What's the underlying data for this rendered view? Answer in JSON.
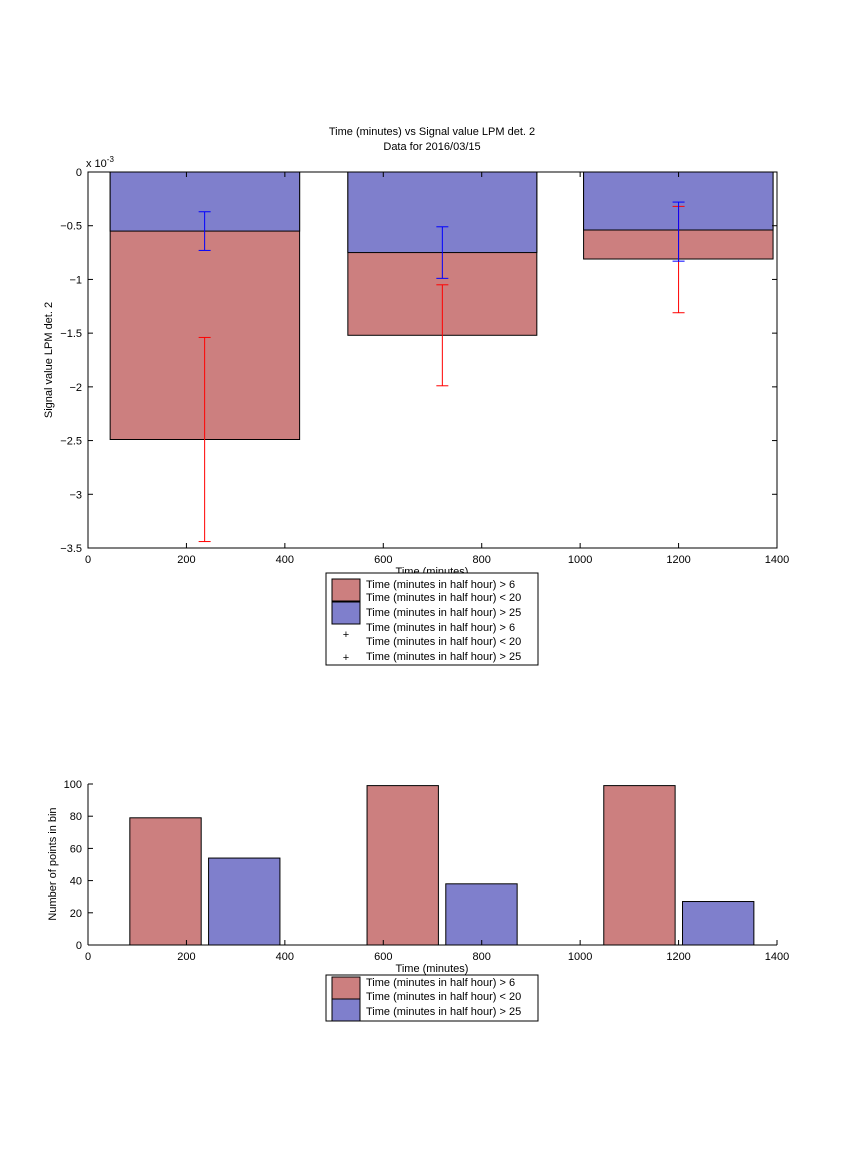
{
  "colors": {
    "red_fill": "#cc7f7f",
    "blue_fill": "#7f7fcc",
    "red_err": "#ff0000",
    "blue_err": "#0000ff"
  },
  "chart_data": [
    {
      "type": "bar",
      "title": "Time (minutes) vs Signal value LPM det. 2",
      "subtitle": "Data for 2016/03/15",
      "xlabel": "Time (minutes)",
      "ylabel": "Signal value LPM det. 2",
      "exponent_label": "x 10",
      "exponent_power": "-3",
      "xlim": [
        0,
        1400
      ],
      "ylim": [
        -3.5,
        0
      ],
      "xticks": [
        "0",
        "200",
        "400",
        "600",
        "800",
        "1000",
        "1200",
        "1400"
      ],
      "yticks": [
        "0",
        "-0.5",
        "-1",
        "-1.5",
        "-2",
        "-2.5",
        "-3",
        "-3.5"
      ],
      "bars": [
        {
          "x_start": 45,
          "x_end": 430,
          "red_value": -2.49,
          "blue_value": -0.55
        },
        {
          "x_start": 528,
          "x_end": 912,
          "red_value": -1.52,
          "blue_value": -0.75
        },
        {
          "x_start": 1007,
          "x_end": 1392,
          "red_value": -0.81,
          "blue_value": -0.54
        }
      ],
      "errorbars": {
        "red": [
          {
            "x": 237,
            "low": -3.44,
            "high": -1.54
          },
          {
            "x": 720,
            "low": -1.99,
            "high": -1.05
          },
          {
            "x": 1200,
            "low": -1.31,
            "high": -0.32
          }
        ],
        "blue": [
          {
            "x": 237,
            "low": -0.73,
            "high": -0.37
          },
          {
            "x": 720,
            "low": -0.99,
            "high": -0.51
          },
          {
            "x": 1200,
            "low": -0.83,
            "high": -0.28
          }
        ]
      },
      "legend": [
        {
          "kind": "patch",
          "color": "red",
          "lines": [
            "Time (minutes in half hour) > 6",
            "Time (minutes in half hour) < 20"
          ]
        },
        {
          "kind": "patch",
          "color": "blue",
          "lines": [
            "Time (minutes in half hour) > 25"
          ]
        },
        {
          "kind": "marker",
          "color": "red",
          "lines": [
            "Time (minutes in half hour) > 6",
            "Time (minutes in half hour) < 20"
          ]
        },
        {
          "kind": "marker",
          "color": "blue",
          "lines": [
            "Time (minutes in half hour) > 25"
          ]
        }
      ]
    },
    {
      "type": "bar",
      "xlabel": "Time (minutes)",
      "ylabel": "Number of points in bin",
      "xlim": [
        0,
        1400
      ],
      "ylim": [
        0,
        100
      ],
      "xticks": [
        "0",
        "200",
        "400",
        "600",
        "800",
        "1000",
        "1200",
        "1400"
      ],
      "yticks": [
        "0",
        "20",
        "40",
        "60",
        "80",
        "100"
      ],
      "bars": [
        {
          "series": "red",
          "x_start": 85,
          "x_end": 230,
          "value": 79
        },
        {
          "series": "blue",
          "x_start": 245,
          "x_end": 390,
          "value": 54
        },
        {
          "series": "red",
          "x_start": 567,
          "x_end": 712,
          "value": 99
        },
        {
          "series": "blue",
          "x_start": 727,
          "x_end": 872,
          "value": 38
        },
        {
          "series": "red",
          "x_start": 1048,
          "x_end": 1193,
          "value": 99
        },
        {
          "series": "blue",
          "x_start": 1208,
          "x_end": 1353,
          "value": 27
        }
      ],
      "legend": [
        {
          "kind": "patch",
          "color": "red",
          "lines": [
            "Time (minutes in half hour) > 6",
            "Time (minutes in half hour) < 20"
          ]
        },
        {
          "kind": "patch",
          "color": "blue",
          "lines": [
            "Time (minutes in half hour) > 25"
          ]
        }
      ]
    }
  ]
}
